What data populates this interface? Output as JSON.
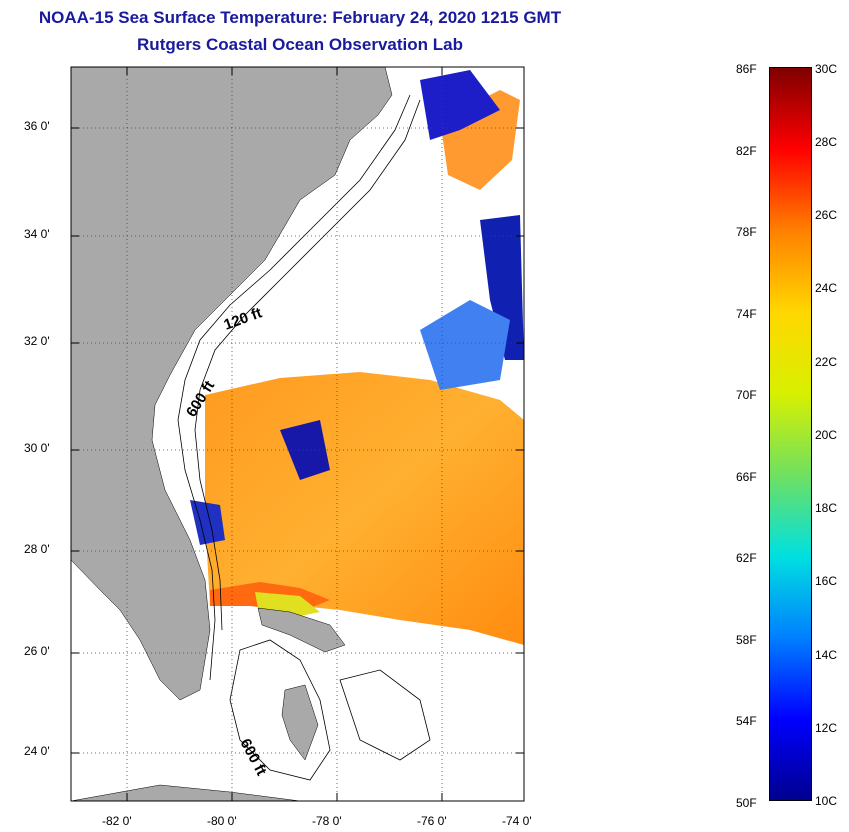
{
  "header": {
    "title": "NOAA-15 Sea Surface Temperature:  February 24, 2020 1215 GMT",
    "subtitle": "Rutgers Coastal Ocean Observation Lab"
  },
  "map": {
    "lat_ticks": [
      "36 0'",
      "34 0'",
      "32 0'",
      "30 0'",
      "28 0'",
      "26 0'",
      "24 0'"
    ],
    "lon_ticks": [
      "-82 0'",
      "-80 0'",
      "-78 0'",
      "-76 0'",
      "-74 0'"
    ],
    "contour_labels": [
      "120 ft",
      "600 ft",
      "600 ft"
    ],
    "colors": {
      "land": "#a9a9a9",
      "ocean": "#ffffff"
    }
  },
  "colorbar": {
    "fahrenheit_labels": [
      "86F",
      "82F",
      "78F",
      "74F",
      "70F",
      "66F",
      "62F",
      "58F",
      "54F",
      "50F"
    ],
    "celsius_labels": [
      "30C",
      "28C",
      "26C",
      "24C",
      "22C",
      "20C",
      "18C",
      "16C",
      "14C",
      "12C",
      "10C"
    ],
    "gradient_colors": [
      "#7f0000",
      "#ff0000",
      "#ff8000",
      "#ffd700",
      "#d8f000",
      "#70e060",
      "#00e0e0",
      "#0080ff",
      "#0000ff",
      "#00008f"
    ]
  }
}
